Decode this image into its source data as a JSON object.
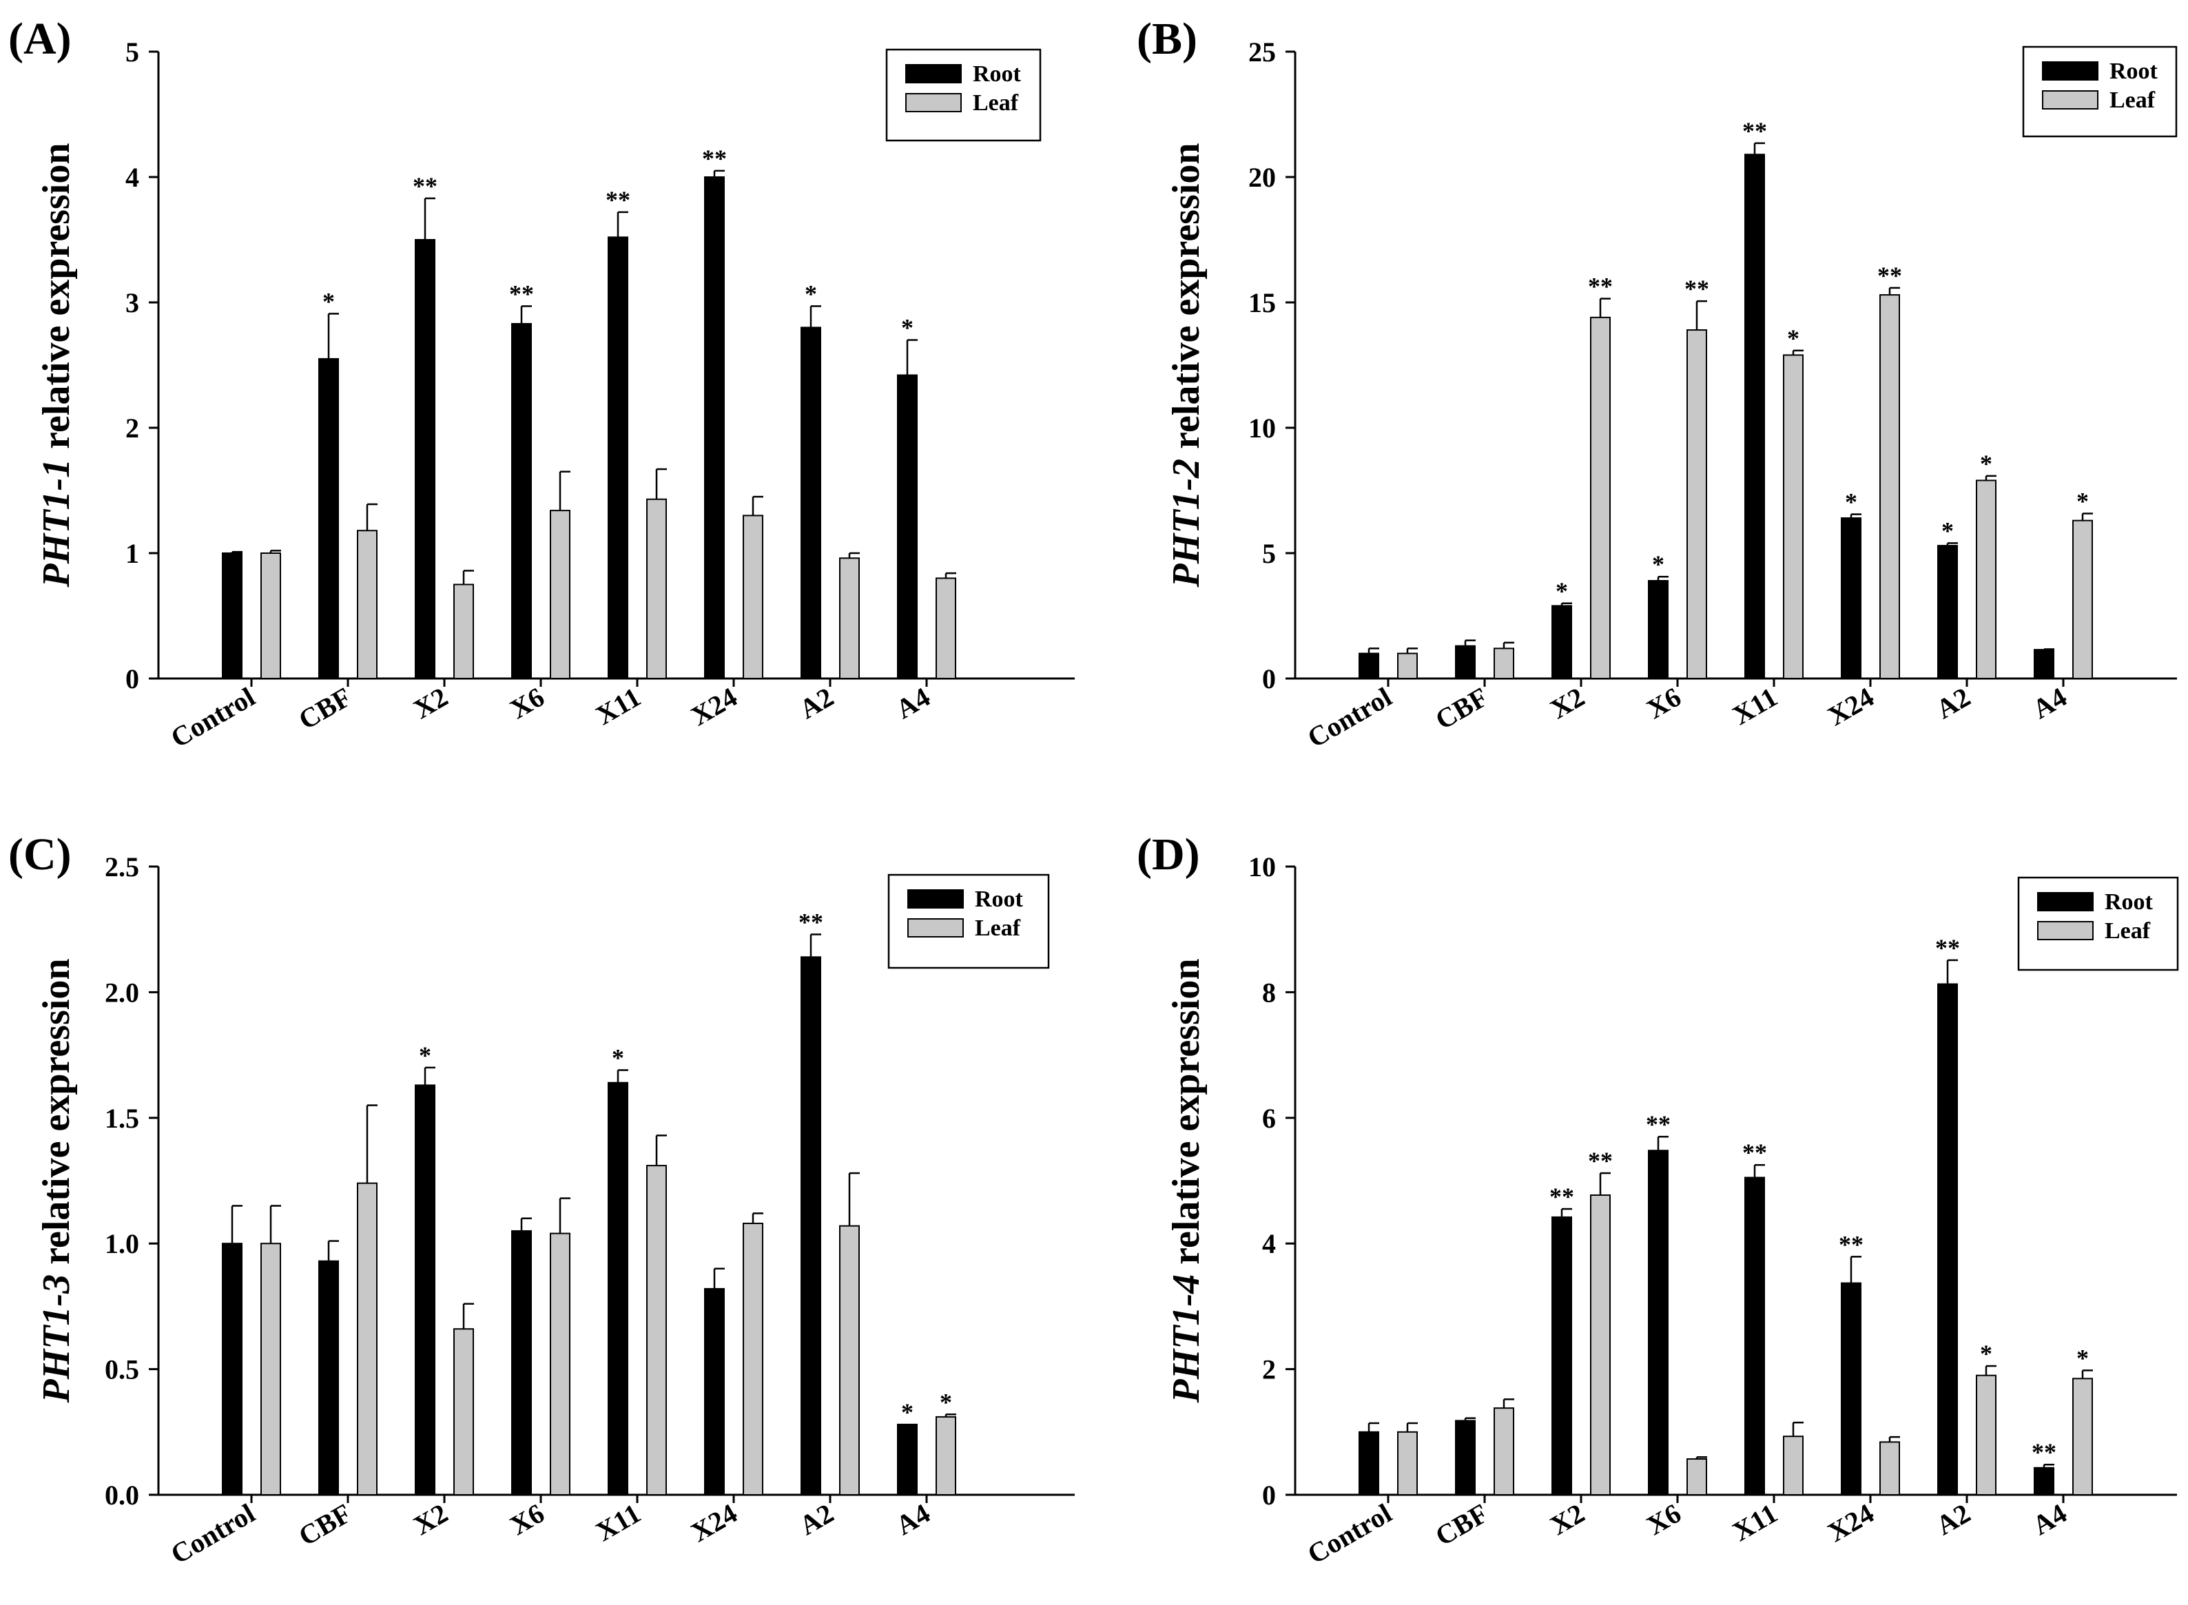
{
  "figure": {
    "series_colors": {
      "Root": "#000000",
      "Leaf": "#c8c8c8"
    }
  },
  "chart_data": [
    {
      "type": "bar",
      "panel": "(A)",
      "ylabel_gene": "PHT1-1",
      "ylabel_rest": " relative expression",
      "categories": [
        "Control",
        "CBF",
        "X2",
        "X6",
        "X11",
        "X24",
        "A2",
        "A4"
      ],
      "ylim": [
        0,
        5
      ],
      "yticks": [
        "0",
        "1",
        "2",
        "3",
        "4",
        "5"
      ],
      "legend": [
        "Root",
        "Leaf"
      ],
      "legend_position": "top-right",
      "series": [
        {
          "name": "Root",
          "values": [
            1.0,
            2.55,
            3.5,
            2.83,
            3.52,
            4.0,
            2.8,
            2.42
          ],
          "errors": [
            0.01,
            0.36,
            0.33,
            0.14,
            0.2,
            0.05,
            0.17,
            0.28
          ],
          "sig": [
            "",
            "*",
            "**",
            "**",
            "**",
            "**",
            "*",
            "*"
          ]
        },
        {
          "name": "Leaf",
          "values": [
            1.0,
            1.18,
            0.75,
            1.34,
            1.43,
            1.3,
            0.96,
            0.8
          ],
          "errors": [
            0.02,
            0.21,
            0.11,
            0.31,
            0.24,
            0.15,
            0.04,
            0.04
          ],
          "sig": [
            "",
            "",
            "",
            "",
            "",
            "",
            "",
            ""
          ]
        }
      ]
    },
    {
      "type": "bar",
      "panel": "(B)",
      "ylabel_gene": "PHT1-2",
      "ylabel_rest": " relative expression",
      "categories": [
        "Control",
        "CBF",
        "X2",
        "X6",
        "X11",
        "X24",
        "A2",
        "A4"
      ],
      "ylim": [
        0,
        25
      ],
      "yticks": [
        "0",
        "5",
        "10",
        "15",
        "20",
        "25"
      ],
      "legend": [
        "Root",
        "Leaf"
      ],
      "legend_position": "top-right",
      "series": [
        {
          "name": "Root",
          "values": [
            1.0,
            1.3,
            2.9,
            3.9,
            20.9,
            6.4,
            5.3,
            1.15
          ],
          "errors": [
            0.2,
            0.22,
            0.1,
            0.16,
            0.45,
            0.15,
            0.1,
            0.02
          ],
          "sig": [
            "",
            "",
            "*",
            "*",
            "**",
            "*",
            "*",
            ""
          ]
        },
        {
          "name": "Leaf",
          "values": [
            1.0,
            1.2,
            14.4,
            13.9,
            12.9,
            15.3,
            7.9,
            6.3
          ],
          "errors": [
            0.2,
            0.23,
            0.75,
            1.15,
            0.18,
            0.28,
            0.18,
            0.28
          ],
          "sig": [
            "",
            "",
            "**",
            "**",
            "*",
            "**",
            "*",
            "*"
          ]
        }
      ]
    },
    {
      "type": "bar",
      "panel": "(C)",
      "ylabel_gene": "PHT1-3",
      "ylabel_rest": " relative expression",
      "categories": [
        "Control",
        "CBF",
        "X2",
        "X6",
        "X11",
        "X24",
        "A2",
        "A4"
      ],
      "ylim": [
        0,
        2.5
      ],
      "yticks": [
        "0.0",
        "0.5",
        "1.0",
        "1.5",
        "2.0",
        "2.5"
      ],
      "legend": [
        "Root",
        "Leaf"
      ],
      "legend_position": "top-right",
      "series": [
        {
          "name": "Root",
          "values": [
            1.0,
            0.93,
            1.63,
            1.05,
            1.64,
            0.82,
            2.14,
            0.28
          ],
          "errors": [
            0.15,
            0.08,
            0.07,
            0.05,
            0.05,
            0.08,
            0.09,
            0.0
          ],
          "sig": [
            "",
            "",
            "*",
            "",
            "*",
            "",
            "**",
            "*"
          ]
        },
        {
          "name": "Leaf",
          "values": [
            1.0,
            1.24,
            0.66,
            1.04,
            1.31,
            1.08,
            1.07,
            0.31
          ],
          "errors": [
            0.15,
            0.31,
            0.1,
            0.14,
            0.12,
            0.04,
            0.21,
            0.01
          ],
          "sig": [
            "",
            "",
            "",
            "",
            "",
            "",
            "",
            "*"
          ]
        }
      ]
    },
    {
      "type": "bar",
      "panel": "(D)",
      "ylabel_gene": "PHT1-4",
      "ylabel_rest": " relative expression",
      "categories": [
        "Control",
        "CBF",
        "X2",
        "X6",
        "X11",
        "X24",
        "A2",
        "A4"
      ],
      "ylim": [
        0,
        10
      ],
      "yticks": [
        "0",
        "2",
        "4",
        "6",
        "8",
        "10"
      ],
      "legend": [
        "Root",
        "Leaf"
      ],
      "legend_position": "top-right",
      "series": [
        {
          "name": "Root",
          "values": [
            1.0,
            1.18,
            4.42,
            5.48,
            5.05,
            3.37,
            8.13,
            0.43
          ],
          "errors": [
            0.14,
            0.04,
            0.13,
            0.22,
            0.2,
            0.42,
            0.38,
            0.05
          ],
          "sig": [
            "",
            "",
            "**",
            "**",
            "**",
            "**",
            "**",
            "**"
          ]
        },
        {
          "name": "Leaf",
          "values": [
            1.0,
            1.38,
            4.77,
            0.57,
            0.93,
            0.84,
            1.9,
            1.85
          ],
          "errors": [
            0.14,
            0.14,
            0.35,
            0.03,
            0.22,
            0.08,
            0.15,
            0.13
          ],
          "sig": [
            "",
            "",
            "**",
            "",
            "",
            "",
            "*",
            "*"
          ]
        }
      ]
    }
  ]
}
